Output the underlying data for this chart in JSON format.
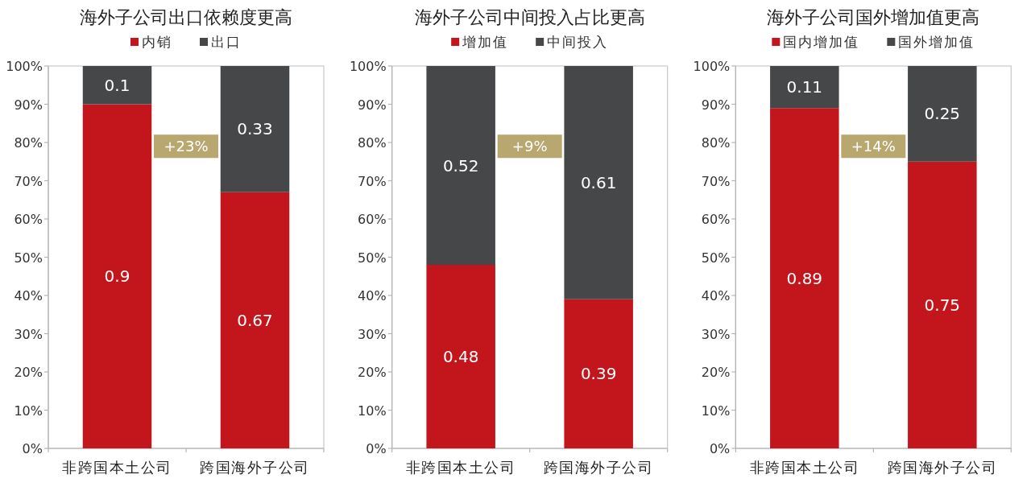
{
  "chart_data": [
    {
      "type": "bar",
      "title": "海外子公司出口依赖度更高",
      "categories": [
        "非跨国本土公司",
        "跨国海外子公司"
      ],
      "stacked": true,
      "legend": "top",
      "data_labels": true,
      "series": [
        {
          "name": "内销",
          "color": "#c3161c",
          "values": [
            0.9,
            0.67
          ]
        },
        {
          "name": "出口",
          "color": "#464749",
          "values": [
            0.1,
            0.33
          ]
        }
      ],
      "ylim": [
        0,
        1
      ],
      "yticks": [
        {
          "value": 0,
          "label": "0%"
        },
        {
          "value": 0.1,
          "label": "10%"
        },
        {
          "value": 0.2,
          "label": "20%"
        },
        {
          "value": 0.3,
          "label": "30%"
        },
        {
          "value": 0.4,
          "label": "40%"
        },
        {
          "value": 0.5,
          "label": "50%"
        },
        {
          "value": 0.6,
          "label": "60%"
        },
        {
          "value": 0.7,
          "label": "70%"
        },
        {
          "value": 0.8,
          "label": "80%"
        },
        {
          "value": 0.9,
          "label": "90%"
        },
        {
          "value": 1,
          "label": "100%"
        }
      ],
      "annotations": [
        "+23%"
      ]
    },
    {
      "type": "bar",
      "title": "海外子公司中间投入占比更高",
      "categories": [
        "非跨国本土公司",
        "跨国海外子公司"
      ],
      "stacked": true,
      "legend": "top",
      "data_labels": true,
      "series": [
        {
          "name": "增加值",
          "color": "#c3161c",
          "values": [
            0.48,
            0.39
          ]
        },
        {
          "name": "中间投入",
          "color": "#464749",
          "values": [
            0.52,
            0.61
          ]
        }
      ],
      "ylim": [
        0,
        1
      ],
      "yticks": [
        {
          "value": 0,
          "label": "0%"
        },
        {
          "value": 0.1,
          "label": "10%"
        },
        {
          "value": 0.2,
          "label": "20%"
        },
        {
          "value": 0.3,
          "label": "30%"
        },
        {
          "value": 0.4,
          "label": "40%"
        },
        {
          "value": 0.5,
          "label": "50%"
        },
        {
          "value": 0.6,
          "label": "60%"
        },
        {
          "value": 0.7,
          "label": "70%"
        },
        {
          "value": 0.8,
          "label": "80%"
        },
        {
          "value": 0.9,
          "label": "90%"
        },
        {
          "value": 1,
          "label": "100%"
        }
      ],
      "annotations": [
        "+9%"
      ]
    },
    {
      "type": "bar",
      "title": "海外子公司国外增加值更高",
      "categories": [
        "非跨国本土公司",
        "跨国海外子公司"
      ],
      "stacked": true,
      "legend": "top",
      "data_labels": true,
      "series": [
        {
          "name": "国内增加值",
          "color": "#c3161c",
          "values": [
            0.89,
            0.75
          ]
        },
        {
          "name": "国外增加值",
          "color": "#464749",
          "values": [
            0.11,
            0.25
          ]
        }
      ],
      "ylim": [
        0,
        1
      ],
      "yticks": [
        {
          "value": 0,
          "label": "0%"
        },
        {
          "value": 0.1,
          "label": "10%"
        },
        {
          "value": 0.2,
          "label": "20%"
        },
        {
          "value": 0.3,
          "label": "30%"
        },
        {
          "value": 0.4,
          "label": "40%"
        },
        {
          "value": 0.5,
          "label": "50%"
        },
        {
          "value": 0.6,
          "label": "60%"
        },
        {
          "value": 0.7,
          "label": "70%"
        },
        {
          "value": 0.8,
          "label": "80%"
        },
        {
          "value": 0.9,
          "label": "90%"
        },
        {
          "value": 1,
          "label": "100%"
        }
      ],
      "annotations": [
        "+14%"
      ]
    }
  ]
}
